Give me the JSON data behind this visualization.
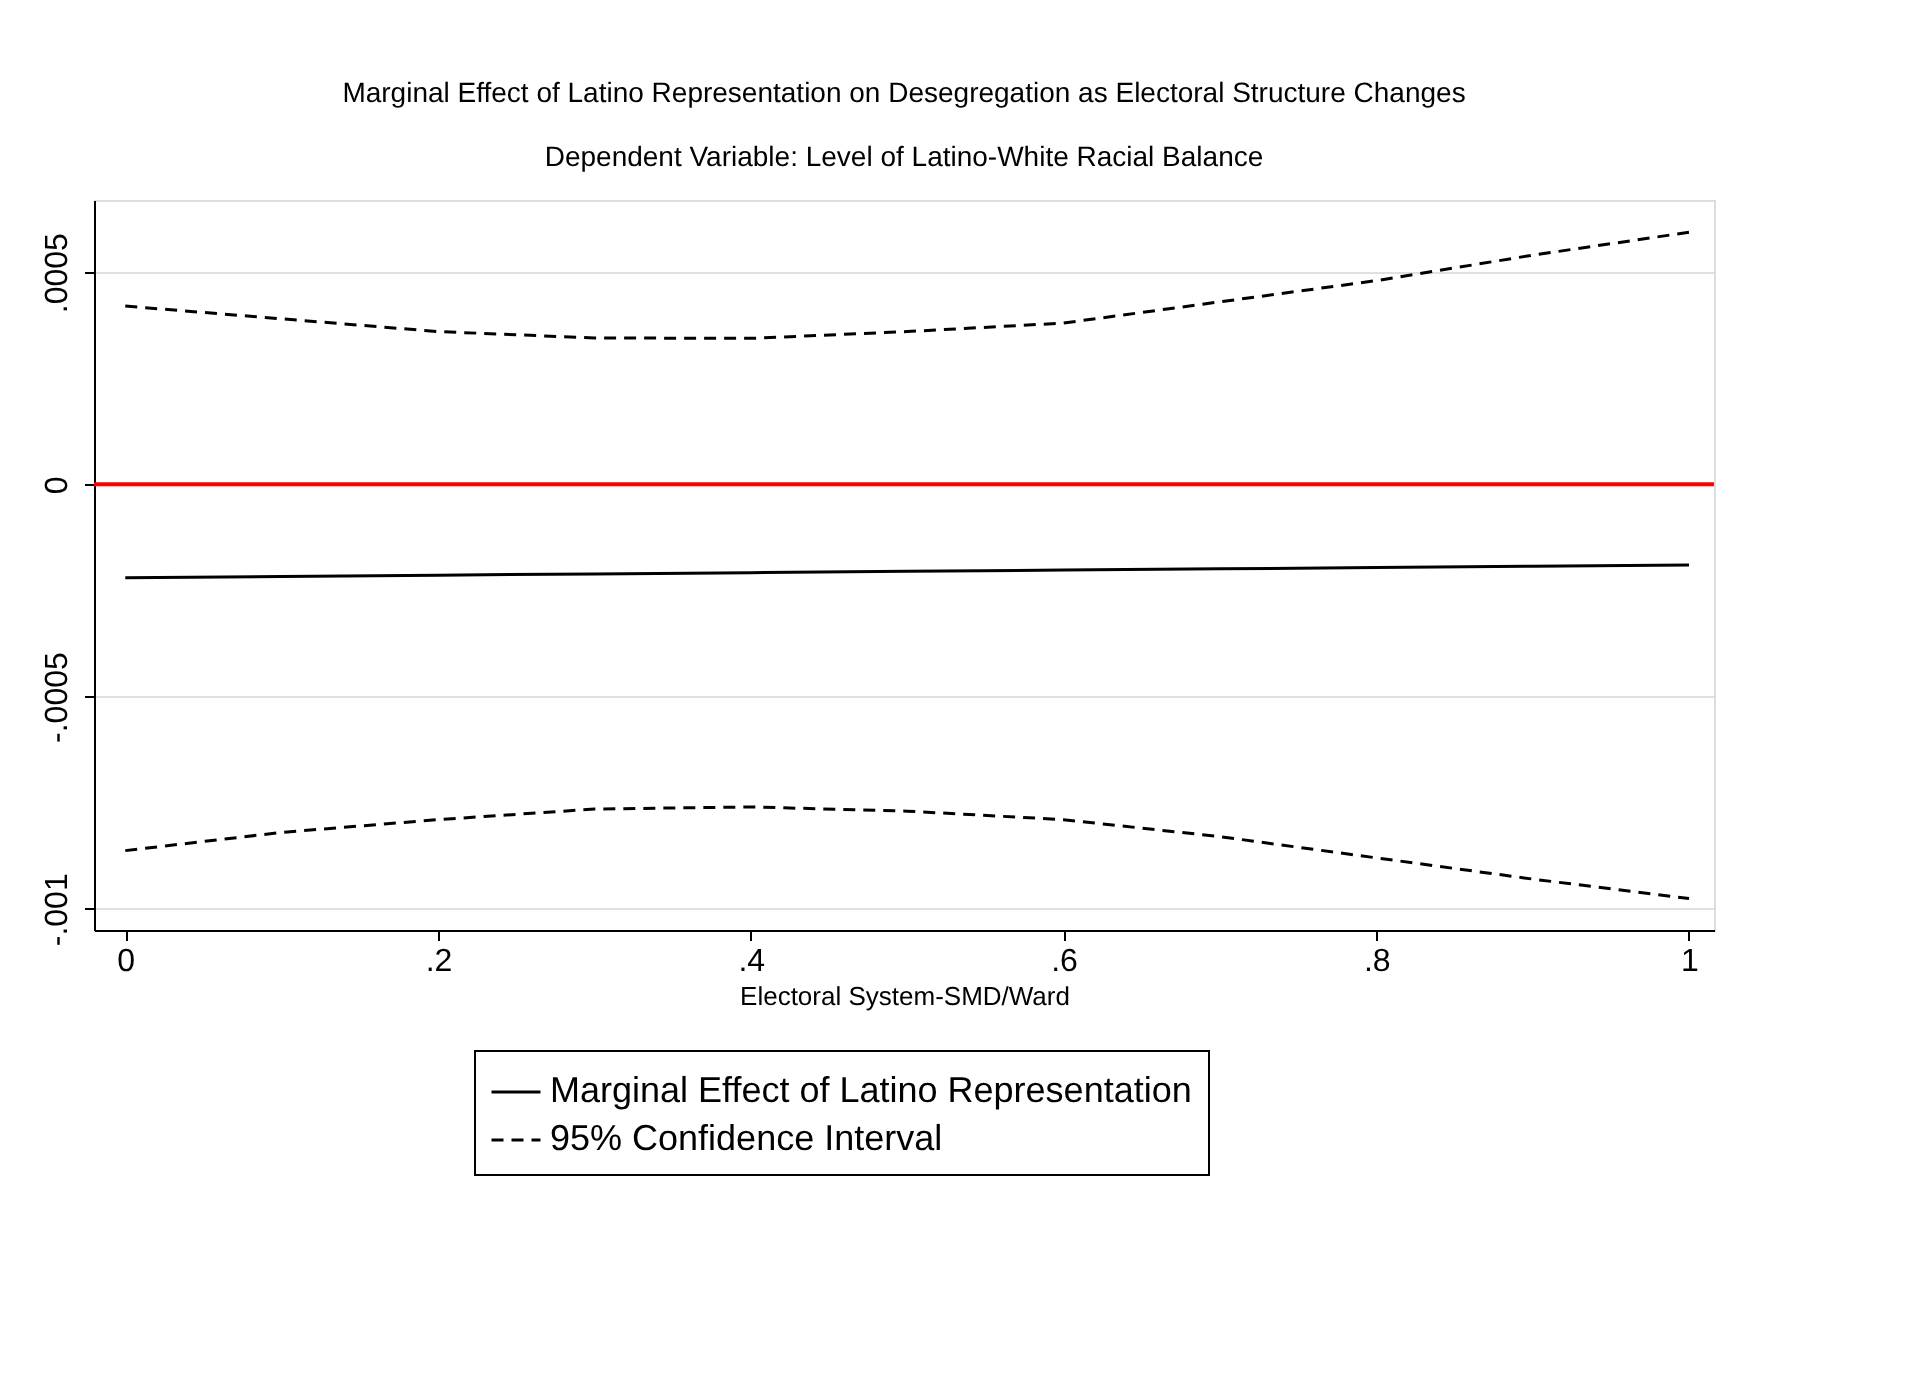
{
  "chart_data": {
    "type": "line",
    "title": "Marginal Effect of Latino Representation on Desegregation as Electoral Structure Changes",
    "subtitle": "Dependent Variable: Level of Latino-White Racial Balance",
    "xlabel": "Electoral System-SMD/Ward",
    "x": [
      0,
      0.1,
      0.2,
      0.3,
      0.4,
      0.5,
      0.6,
      0.7,
      0.8,
      0.9,
      1
    ],
    "series": [
      {
        "name": "Marginal Effect of Latino Representation",
        "color": "#000000",
        "line_style": "solid",
        "values": [
          -0.00022,
          -0.000217,
          -0.000214,
          -0.000211,
          -0.000208,
          -0.000205,
          -0.000202,
          -0.000199,
          -0.000196,
          -0.000193,
          -0.00019
        ]
      },
      {
        "name": "95% Confidence Interval",
        "color": "#000000",
        "line_style": "dashed",
        "values": [
          0.00042,
          0.00039,
          0.00036,
          0.000345,
          0.000344,
          0.00036,
          0.00038,
          0.00043,
          0.00048,
          0.00054,
          0.000594
        ]
      },
      {
        "color": "#000000",
        "line_style": "dashed",
        "values": [
          -0.000863,
          -0.00082,
          -0.00079,
          -0.000765,
          -0.00076,
          -0.00077,
          -0.00079,
          -0.00083,
          -0.00088,
          -0.00093,
          -0.000976
        ]
      }
    ],
    "xlim": [
      -0.02,
      1.016
    ],
    "ylim": [
      -0.00105,
      0.00067
    ],
    "xticks": [
      0,
      {
        "value": 0.2,
        "label": ".2"
      },
      {
        "value": 0.4,
        "label": ".4"
      },
      {
        "value": 0.6,
        "label": ".6"
      },
      {
        "value": 0.8,
        "label": ".8"
      },
      1
    ],
    "yticks": [
      {
        "value": -0.001,
        "label": "-.001"
      },
      {
        "value": -0.0005,
        "label": "-.0005"
      },
      0,
      {
        "value": 0.0005,
        "label": ".0005"
      }
    ],
    "ref_lines": [
      {
        "axis": "y",
        "value": 0,
        "color": "#ff0000"
      }
    ],
    "grid": "y",
    "legend": "bottom",
    "marker": "none"
  }
}
